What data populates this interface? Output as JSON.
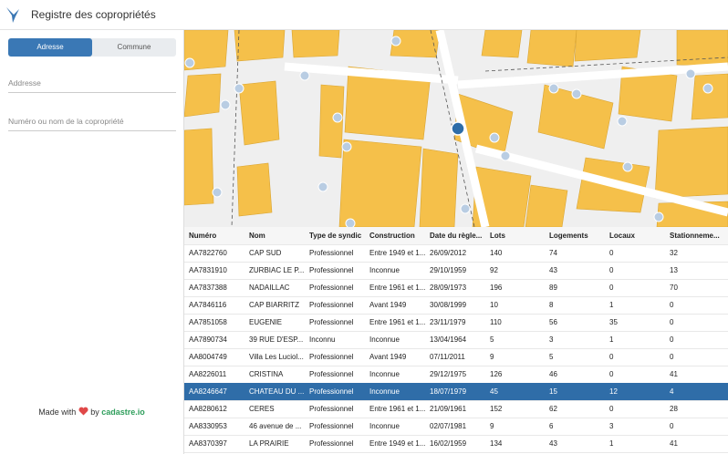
{
  "header": {
    "title": "Registre des copropriétés"
  },
  "sidebar": {
    "tabs": [
      "Adresse",
      "Commune"
    ],
    "active_tab": 0,
    "address_placeholder": "Addresse",
    "name_placeholder": "Numéro ou nom de la copropriété"
  },
  "footer": {
    "prefix": "Made with",
    "middle": "by",
    "link": "cadastre.io"
  },
  "table": {
    "columns": [
      "Numéro",
      "Nom",
      "Type de syndic",
      "Construction",
      "Date du règle...",
      "Lots",
      "Logements",
      "Locaux",
      "Stationneme..."
    ],
    "selected_row": 8,
    "rows": [
      [
        "AA7822760",
        "CAP SUD",
        "Professionnel",
        "Entre 1949 et 1...",
        "26/09/2012",
        140,
        74,
        0,
        32
      ],
      [
        "AA7831910",
        "ZURBIAC LE P...",
        "Professionnel",
        "Inconnue",
        "29/10/1959",
        92,
        43,
        0,
        13
      ],
      [
        "AA7837388",
        "NADAILLAC",
        "Professionnel",
        "Entre 1961 et 1...",
        "28/09/1973",
        196,
        89,
        0,
        70
      ],
      [
        "AA7846116",
        "CAP BIARRITZ",
        "Professionnel",
        "Avant 1949",
        "30/08/1999",
        10,
        8,
        1,
        0
      ],
      [
        "AA7851058",
        "EUGENIE",
        "Professionnel",
        "Entre 1961 et 1...",
        "23/11/1979",
        110,
        56,
        35,
        0
      ],
      [
        "AA7890734",
        "39 RUE D'ESP...",
        "Inconnu",
        "Inconnue",
        "13/04/1964",
        5,
        3,
        1,
        0
      ],
      [
        "AA8004749",
        "Villa Les Luciol...",
        "Professionnel",
        "Avant 1949",
        "07/11/2011",
        9,
        5,
        0,
        0
      ],
      [
        "AA8226011",
        "CRISTINA",
        "Professionnel",
        "Inconnue",
        "29/12/1975",
        126,
        46,
        0,
        41
      ],
      [
        "AA8246647",
        "CHATEAU DU ...",
        "Professionnel",
        "Inconnue",
        "18/07/1979",
        45,
        15,
        12,
        4
      ],
      [
        "AA8280612",
        "CERES",
        "Professionnel",
        "Entre 1961 et 1...",
        "21/09/1961",
        152,
        62,
        0,
        28
      ],
      [
        "AA8330953",
        "46 avenue de ...",
        "Professionnel",
        "Inconnue",
        "02/07/1981",
        9,
        6,
        3,
        0
      ],
      [
        "AA8370397",
        "LA PRAIRIE",
        "Professionnel",
        "Entre 1949 et 1...",
        "16/02/1959",
        134,
        43,
        1,
        41
      ]
    ]
  }
}
